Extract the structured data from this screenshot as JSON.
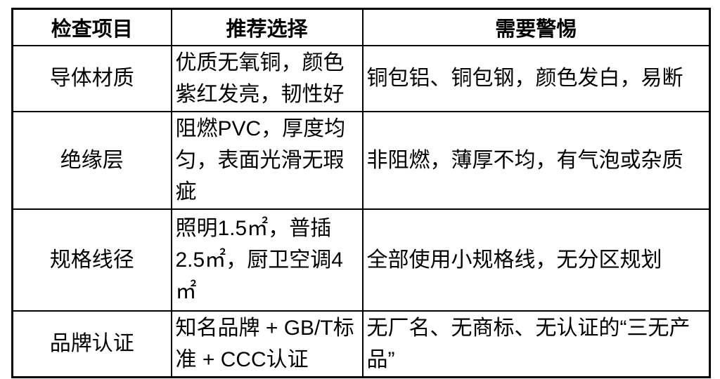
{
  "colors": {
    "background": "#ffffff",
    "border": "#000000",
    "text": "#000000"
  },
  "table": {
    "headers": [
      "检查项目",
      "推荐选择",
      "需要警惕"
    ],
    "rows": [
      {
        "item": "导体材质",
        "recommended": "优质无氧铜，颜色紫红发亮，韧性好",
        "warning": "铜包铝、铜包钢，颜色发白，易断"
      },
      {
        "item": "绝缘层",
        "recommended": "阻燃PVC，厚度均匀，表面光滑无瑕疵",
        "warning": "非阻燃，薄厚不均，有气泡或杂质"
      },
      {
        "item": "规格线径",
        "recommended": "照明1.5㎡，普插2.5㎡，厨卫空调4㎡",
        "warning": "全部使用小规格线，无分区规划"
      },
      {
        "item": "品牌认证",
        "recommended": "知名品牌 + GB/T标准 + CCC认证",
        "warning": "无厂名、无商标、无认证的“三无产品”"
      }
    ]
  }
}
